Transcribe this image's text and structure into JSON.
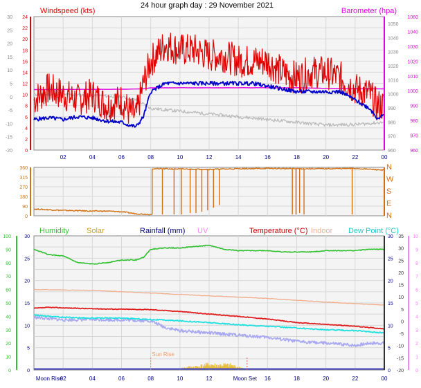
{
  "title": "24 hour graph day : 29 November 2021",
  "colors": {
    "wind": "#e00000",
    "gust_hi": "#ff2020",
    "avg": "#0000c8",
    "baro": "#e000e0",
    "dir": "#d07010",
    "humidity": "#30c030",
    "solar": "#e8c040",
    "rain": "#000080",
    "uv": "#ff80ff",
    "temp": "#e02020",
    "indoor": "#f0b090",
    "dew": "#20e0e0",
    "feels": "#a8a8f0",
    "grid": "#d8d8d8",
    "bg": "#f4f4f4"
  },
  "x_ticks": [
    "02",
    "04",
    "06",
    "08",
    "10",
    "12",
    "14",
    "16",
    "18",
    "20",
    "22",
    "00"
  ],
  "chart_data": [
    {
      "type": "line",
      "panel": "wind",
      "left_axis_label": "Windspeed (kts)",
      "right_axis_label": "Barometer (hpa)",
      "left_ticks_outer": [
        "30",
        "25",
        "20",
        "15",
        "10",
        "5",
        "0",
        "-5",
        "-10",
        "-15",
        "-20"
      ],
      "left_ticks_inner": [
        "24",
        "22",
        "20",
        "18",
        "16",
        "14",
        "12",
        "10",
        "8",
        "6",
        "4",
        "2",
        "0"
      ],
      "right_ticks_inner": [
        "1050",
        "1040",
        "1030",
        "1020",
        "1010",
        "1000",
        "990",
        "980",
        "970",
        "960"
      ],
      "right_ticks_outer": [
        "1060",
        "1040",
        "1030",
        "1020",
        "1010",
        "1000",
        "990",
        "980",
        "970",
        "960"
      ],
      "ylim": [
        0,
        24
      ],
      "baro_ylim": [
        960,
        1050
      ],
      "series": [
        {
          "name": "gust",
          "x": [
            0,
            1,
            2,
            3,
            4,
            5,
            6,
            6.5,
            7,
            7.5,
            8,
            9,
            10,
            11,
            12,
            13,
            14,
            15,
            16,
            17,
            18,
            19,
            20,
            21,
            22,
            23,
            23.5,
            24
          ],
          "values": [
            9,
            11,
            10,
            9,
            10,
            8,
            9,
            7,
            6,
            12,
            16,
            19,
            18,
            18,
            17,
            17,
            16,
            16,
            16,
            14,
            13,
            14,
            14,
            13,
            11,
            10,
            8,
            8
          ]
        },
        {
          "name": "average",
          "x": [
            0,
            1,
            2,
            3,
            4,
            5,
            6,
            6.5,
            7,
            7.5,
            8,
            9,
            10,
            11,
            12,
            13,
            14,
            15,
            16,
            17,
            18,
            19,
            20,
            21,
            22,
            23,
            23.5,
            24
          ],
          "values": [
            5.5,
            5.8,
            5.5,
            6,
            5.8,
            5.2,
            5,
            4.5,
            4.2,
            6,
            10.5,
            12,
            12,
            12,
            12,
            12,
            12,
            12,
            11.5,
            11,
            10.5,
            10.5,
            10.5,
            10.5,
            9,
            7.5,
            5.8,
            6.2
          ]
        },
        {
          "name": "barometer",
          "x": [
            0,
            3,
            6,
            7.5,
            8,
            10,
            12,
            14,
            16,
            18,
            20,
            22,
            24
          ],
          "values": [
            1000.8,
            1000.9,
            1001,
            1001.3,
            1002,
            1002,
            1002,
            1002,
            1002,
            1002,
            1001.6,
            1001.4,
            1001.3
          ]
        },
        {
          "name": "grey",
          "x": [
            0,
            2,
            4,
            6,
            7,
            8,
            10,
            12,
            14,
            16,
            18,
            20,
            22,
            24
          ],
          "values": [
            10,
            10,
            9.8,
            9.6,
            9,
            7.5,
            7,
            6.5,
            6,
            5.5,
            5,
            4.5,
            4.6,
            5
          ]
        }
      ]
    },
    {
      "type": "line",
      "panel": "direction",
      "left_ticks": [
        "360",
        "315",
        "270",
        "180",
        "90",
        "0"
      ],
      "right_ticks": [
        "N",
        "W",
        "S",
        "E",
        "N"
      ],
      "ylim": [
        0,
        360
      ],
      "segments": [
        {
          "x": [
            0,
            1,
            2,
            3,
            4,
            5,
            6,
            7,
            8.1
          ],
          "values": [
            50,
            45,
            40,
            38,
            35,
            35,
            30,
            15,
            10
          ]
        },
        {
          "x": [
            8.1,
            10,
            12,
            14,
            16,
            18,
            20,
            22,
            24
          ],
          "values": [
            350,
            348,
            345,
            350,
            352,
            350,
            350,
            352,
            340
          ]
        }
      ],
      "drops": [
        {
          "x": 8.1,
          "values": [
            350,
            10
          ]
        },
        {
          "x": 8.8,
          "values": [
            350,
            10
          ]
        },
        {
          "x": 9.6,
          "values": [
            350,
            10
          ]
        },
        {
          "x": 10.1,
          "values": [
            350,
            10
          ]
        },
        {
          "x": 10.7,
          "values": [
            350,
            20
          ]
        },
        {
          "x": 11.1,
          "values": [
            350,
            20
          ]
        },
        {
          "x": 11.5,
          "values": [
            350,
            30
          ]
        },
        {
          "x": 11.9,
          "values": [
            350,
            40
          ]
        },
        {
          "x": 12.3,
          "values": [
            350,
            60
          ]
        },
        {
          "x": 12.7,
          "values": [
            350,
            80
          ]
        },
        {
          "x": 17.7,
          "values": [
            350,
            10
          ]
        },
        {
          "x": 17.95,
          "values": [
            350,
            10
          ]
        },
        {
          "x": 18.2,
          "values": [
            350,
            20
          ]
        },
        {
          "x": 18.5,
          "values": [
            350,
            10
          ]
        },
        {
          "x": 21.8,
          "values": [
            350,
            10
          ]
        }
      ]
    },
    {
      "type": "line",
      "panel": "climate",
      "labels": {
        "humidity": "Humidity",
        "solar": "Solar",
        "rain": "Rainfall (mm)",
        "uv": "UV",
        "temp": "Temperature (°C)",
        "indoor": "Indoor",
        "dew": "Dew Point (°C)"
      },
      "left_ticks_outer": [
        "100",
        "90",
        "80",
        "70",
        "60",
        "50",
        "40",
        "30",
        "20",
        "10",
        "0"
      ],
      "left_ticks_inner": [
        "30",
        "25",
        "20",
        "15",
        "10",
        "5",
        "0"
      ],
      "right_ticks_inner": [
        "30",
        "25",
        "20",
        "15",
        "10",
        "5",
        "0"
      ],
      "right_ticks_outer": [
        "35",
        "30",
        "25",
        "20",
        "15",
        "10",
        "5",
        "0",
        "-5",
        "-10",
        "-15",
        "-20"
      ],
      "right_ticks_far": [
        "10",
        "9",
        "8",
        "7",
        "6",
        "5",
        "4",
        "3",
        "2",
        "1",
        "0"
      ],
      "ylim": [
        0,
        30
      ],
      "series": [
        {
          "name": "Humidity",
          "x": [
            0,
            1,
            2,
            3,
            4,
            5,
            6,
            7,
            7.5,
            8,
            9,
            10,
            11,
            12,
            13,
            14,
            15,
            16,
            17,
            18,
            19,
            20,
            21,
            22,
            23,
            24
          ],
          "values": [
            90,
            86,
            85,
            80,
            79,
            80,
            82,
            82,
            84,
            90,
            91,
            91,
            92,
            93,
            90,
            89,
            89,
            89,
            88,
            88,
            88,
            89,
            89,
            89,
            90,
            90
          ]
        },
        {
          "name": "Indoor",
          "x": [
            0,
            4,
            8,
            12,
            16,
            20,
            24
          ],
          "values": [
            18,
            17.8,
            17.2,
            16.6,
            16,
            15.2,
            14.5
          ]
        },
        {
          "name": "Temperature",
          "x": [
            0,
            1,
            2,
            4,
            6,
            8,
            10,
            12,
            14,
            16,
            18,
            20,
            22,
            24
          ],
          "values": [
            13.8,
            14,
            13.9,
            13.7,
            13.6,
            13.5,
            13.1,
            12.5,
            12,
            11.4,
            10.6,
            10.2,
            9.8,
            9.2
          ]
        },
        {
          "name": "Dew Point",
          "x": [
            0,
            2,
            4,
            6,
            8,
            10,
            12,
            14,
            16,
            18,
            20,
            22,
            24
          ],
          "values": [
            12.3,
            11.8,
            11.6,
            11.6,
            11.3,
            11,
            10.6,
            10.1,
            9.8,
            9.4,
            9,
            8.8,
            8.3
          ]
        },
        {
          "name": "grey-lavender",
          "x": [
            0,
            2,
            4,
            6,
            8,
            9,
            10,
            12,
            14,
            16,
            18,
            20,
            22,
            23,
            24
          ],
          "values": [
            11.8,
            11.2,
            11.3,
            11.2,
            11,
            9.5,
            8.8,
            8.3,
            7.8,
            7.3,
            6.4,
            6,
            5.5,
            6,
            6
          ]
        },
        {
          "name": "Solar",
          "x": [
            9.5,
            10,
            10.5,
            11,
            11.5,
            12,
            12.5,
            13,
            13.5,
            14,
            14.5,
            15
          ],
          "values": [
            0.1,
            0.3,
            0.6,
            0.7,
            0.9,
            1.2,
            1.0,
            1.1,
            1.0,
            0.6,
            0.3,
            0.1
          ]
        }
      ],
      "markers": [
        {
          "label": "Sun Rise",
          "x": 8.0
        },
        {
          "label": "Moon Rise",
          "x": 0.5
        },
        {
          "label": "Moon Set",
          "x": 14.6
        }
      ]
    }
  ]
}
